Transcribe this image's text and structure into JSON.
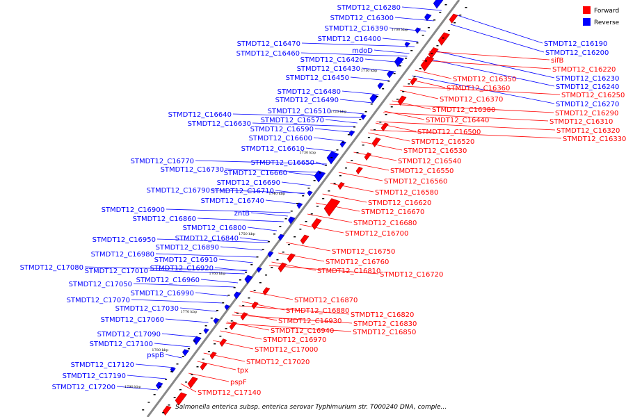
{
  "colors": {
    "forward": "#ff0000",
    "reverse": "#0000ff",
    "forward_dark": "#b00000",
    "reverse_dark": "#0000a8",
    "backbone": "#888888"
  },
  "legend": {
    "forward_label": "Forward",
    "reverse_label": "Reverse"
  },
  "caption": "Salmonella enterica subsp. enterica serovar Typhimurium str. T000240 DNA, comple...",
  "ticks": [
    "1700 kbp",
    "1710 kbp",
    "1720 kbp",
    "1730 kbp",
    "1740 kbp",
    "1750 kbp",
    "1760 kbp",
    "1770 kbp",
    "1780 kbp",
    "1790 kbp"
  ],
  "reverse_genes": [
    "STMDT12_C16280",
    "STMDT12_C16300",
    "STMDT12_C16390",
    "STMDT12_C16400",
    "STMDT12_C16470",
    "mdoD",
    "STMDT12_C16460",
    "STMDT12_C16420",
    "STMDT12_C16430",
    "STMDT12_C16450",
    "STMDT12_C16480",
    "STMDT12_C16490",
    "STMDT12_C16640",
    "STMDT12_C16510",
    "STMDT12_C16570",
    "STMDT12_C16630",
    "STMDT12_C16590",
    "STMDT12_C16600",
    "STMDT12_C16610",
    "STMDT12_C16770",
    "STMDT12_C16650",
    "STMDT12_C16730",
    "STMDT12_C16660",
    "STMDT12_C16690",
    "STMDT12_C16790",
    "STMDT12_C16710",
    "STMDT12_C16740",
    "zntB",
    "STMDT12_C16900",
    "STMDT12_C16860",
    "STMDT12_C16800",
    "STMDT12_C16840",
    "STMDT12_C16950",
    "STMDT12_C16890",
    "STMDT12_C16980",
    "STMDT12_C16910",
    "STMDT12_C17080",
    "STMDT12_C17010",
    "STMDT12_C16920",
    "STMDT12_C16960",
    "STMDT12_C17050",
    "STMDT12_C16990",
    "STMDT12_C17070",
    "STMDT12_C17030",
    "STMDT12_C17060",
    "STMDT12_C17090",
    "STMDT12_C17100",
    "pspB",
    "STMDT12_C17120",
    "STMDT12_C17190",
    "STMDT12_C17200",
    "STMDT12_C16190",
    "STMDT12_C16200",
    "STMDT12_C16230",
    "STMDT12_C16240",
    "STMDT12_C16270"
  ],
  "forward_genes": [
    "sifB",
    "STMDT12_C16220",
    "STMDT12_C16250",
    "STMDT12_C16290",
    "STMDT12_C16310",
    "STMDT12_C16320",
    "STMDT12_C16330",
    "STMDT12_C16350",
    "STMDT12_C16360",
    "STMDT12_C16370",
    "STMDT12_C16380",
    "STMDT12_C16440",
    "STMDT12_C16500",
    "STMDT12_C16520",
    "STMDT12_C16530",
    "STMDT12_C16540",
    "STMDT12_C16550",
    "STMDT12_C16560",
    "STMDT12_C16580",
    "STMDT12_C16620",
    "STMDT12_C16670",
    "STMDT12_C16680",
    "STMDT12_C16700",
    "STMDT12_C16750",
    "STMDT12_C16760",
    "STMDT12_C16810",
    "STMDT12_C16720",
    "STMDT12_C16870",
    "STMDT12_C16880",
    "STMDT12_C16820",
    "STMDT12_C16830",
    "STMDT12_C16930",
    "STMDT12_C16850",
    "STMDT12_C16940",
    "STMDT12_C16970",
    "STMDT12_C17000",
    "STMDT12_C17020",
    "tpx",
    "pspF",
    "STMDT12_C17140"
  ]
}
